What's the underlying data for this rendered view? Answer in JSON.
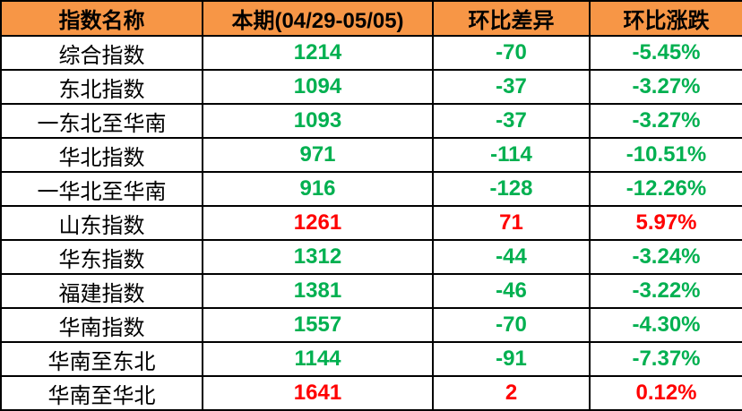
{
  "colors": {
    "header_bg": "#F79646",
    "down": "#00B050",
    "up": "#FF0000"
  },
  "headers": [
    "指数名称",
    "本期(04/29-05/05)",
    "环比差异",
    "环比涨跌"
  ],
  "rows": [
    {
      "name": "综合指数",
      "value": "1214",
      "diff": "-70",
      "pct": "-5.45%",
      "trend": "down"
    },
    {
      "name": "东北指数",
      "value": "1094",
      "diff": "-37",
      "pct": "-3.27%",
      "trend": "down"
    },
    {
      "name": "一东北至华南",
      "value": "1093",
      "diff": "-37",
      "pct": "-3.27%",
      "trend": "down"
    },
    {
      "name": "华北指数",
      "value": "971",
      "diff": "-114",
      "pct": "-10.51%",
      "trend": "down"
    },
    {
      "name": "一华北至华南",
      "value": "916",
      "diff": "-128",
      "pct": "-12.26%",
      "trend": "down"
    },
    {
      "name": "山东指数",
      "value": "1261",
      "diff": "71",
      "pct": "5.97%",
      "trend": "up"
    },
    {
      "name": "华东指数",
      "value": "1312",
      "diff": "-44",
      "pct": "-3.24%",
      "trend": "down"
    },
    {
      "name": "福建指数",
      "value": "1381",
      "diff": "-46",
      "pct": "-3.22%",
      "trend": "down"
    },
    {
      "name": "华南指数",
      "value": "1557",
      "diff": "-70",
      "pct": "-4.30%",
      "trend": "down"
    },
    {
      "name": "华南至东北",
      "value": "1144",
      "diff": "-91",
      "pct": "-7.37%",
      "trend": "down"
    },
    {
      "name": "华南至华北",
      "value": "1641",
      "diff": "2",
      "pct": "0.12%",
      "trend": "up"
    }
  ]
}
